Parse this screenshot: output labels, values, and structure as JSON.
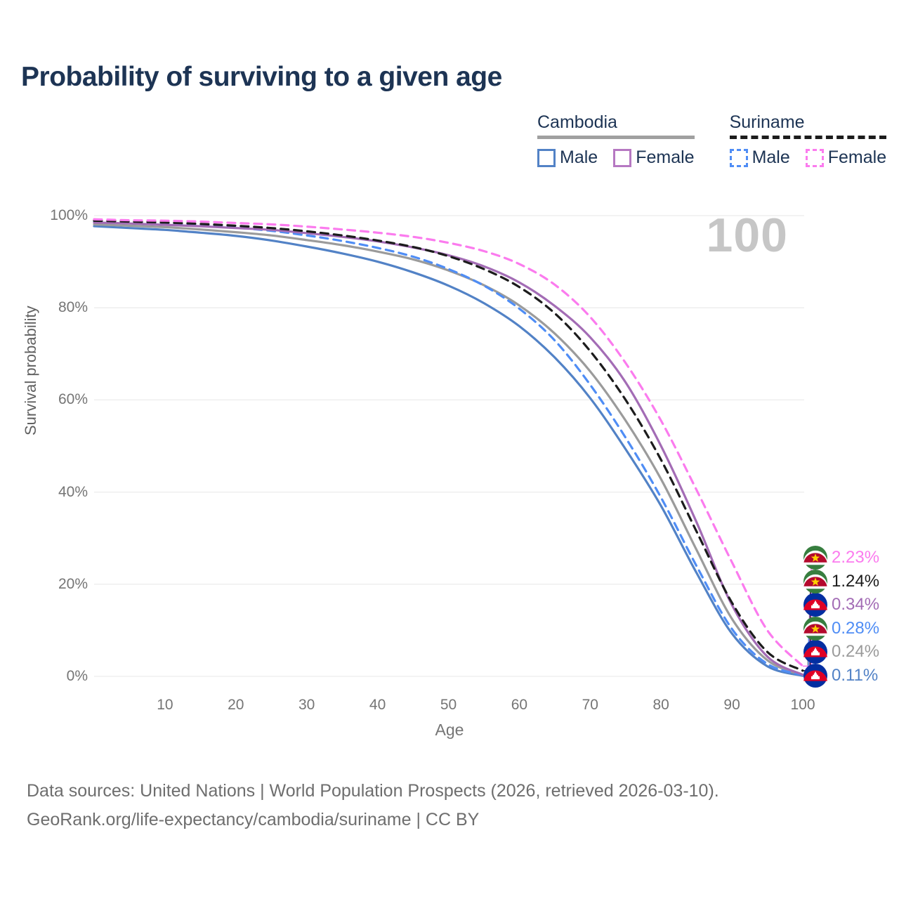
{
  "header": {
    "title": "Probability of surviving to a given age"
  },
  "legend": {
    "groups": [
      {
        "id": "cambodia",
        "label": "Cambodia",
        "underline_style": "solid",
        "underline_color": "#a0a0a0",
        "items": [
          {
            "label": "Male",
            "color": "#5282c6",
            "dashed": false
          },
          {
            "label": "Female",
            "color": "#b678c2",
            "dashed": false
          }
        ]
      },
      {
        "id": "suriname",
        "label": "Suriname",
        "underline_style": "dashed",
        "underline_color": "#1c1c1c",
        "items": [
          {
            "label": "Male",
            "color": "#4f8df5",
            "dashed": true
          },
          {
            "label": "Female",
            "color": "#fb7bee",
            "dashed": true
          }
        ]
      }
    ]
  },
  "chart_data": {
    "type": "line",
    "title": "Probability of surviving to a given age",
    "xlabel": "Age",
    "ylabel": "Survival probability",
    "xlim": [
      0,
      100
    ],
    "ylim": [
      0,
      100
    ],
    "grid": "horizontal",
    "legend_position": "top-right",
    "age_counter": "100",
    "x_ticks": [
      10,
      20,
      30,
      40,
      50,
      60,
      70,
      80,
      90,
      100
    ],
    "y_ticks": [
      {
        "value": 0,
        "label": "0%"
      },
      {
        "value": 20,
        "label": "20%"
      },
      {
        "value": 40,
        "label": "40%"
      },
      {
        "value": 60,
        "label": "60%"
      },
      {
        "value": 80,
        "label": "80%"
      },
      {
        "value": 100,
        "label": "100%"
      }
    ],
    "x": [
      0,
      5,
      10,
      15,
      20,
      25,
      30,
      35,
      40,
      45,
      50,
      55,
      60,
      65,
      70,
      75,
      80,
      85,
      90,
      95,
      100
    ],
    "series": [
      {
        "id": "suriname-female",
        "name": "Suriname Female",
        "country": "Suriname",
        "sex": "Female",
        "color": "#fb7bee",
        "dashed": true,
        "flag": "suriname",
        "end_label": "2.23%",
        "values": [
          99.2,
          99.0,
          98.9,
          98.7,
          98.4,
          98.1,
          97.6,
          97.0,
          96.3,
          95.4,
          94.1,
          92.3,
          89.5,
          85.0,
          78.0,
          68.0,
          55.5,
          40.5,
          24.8,
          10.0,
          2.23
        ]
      },
      {
        "id": "suriname-both",
        "name": "Suriname",
        "country": "Suriname",
        "sex": "Both",
        "color": "#1c1c1c",
        "dashed": true,
        "flag": "suriname",
        "end_label": "1.24%",
        "values": [
          98.9,
          98.7,
          98.5,
          98.2,
          97.8,
          97.3,
          96.6,
          95.7,
          94.6,
          93.2,
          91.2,
          88.4,
          84.5,
          78.8,
          70.6,
          60.0,
          47.0,
          31.5,
          16.0,
          5.3,
          1.24
        ]
      },
      {
        "id": "cambodia-female",
        "name": "Cambodia Female",
        "country": "Cambodia",
        "sex": "Female",
        "color": "#a36cb5",
        "dashed": false,
        "flag": "cambodia",
        "end_label": "0.34%",
        "values": [
          98.5,
          98.3,
          98.0,
          97.7,
          97.3,
          96.9,
          96.2,
          95.4,
          94.4,
          93.1,
          91.4,
          89.0,
          85.5,
          80.4,
          73.6,
          63.8,
          50.0,
          33.5,
          15.5,
          4.3,
          0.34
        ]
      },
      {
        "id": "suriname-male",
        "name": "Suriname Male",
        "country": "Suriname",
        "sex": "Male",
        "color": "#4f8df5",
        "dashed": true,
        "flag": "suriname",
        "end_label": "0.28%",
        "values": [
          98.7,
          98.5,
          98.2,
          97.9,
          97.4,
          96.7,
          95.7,
          94.5,
          93.0,
          91.1,
          88.4,
          84.8,
          79.8,
          72.9,
          63.3,
          51.8,
          38.8,
          24.0,
          10.3,
          2.7,
          0.28
        ]
      },
      {
        "id": "cambodia-both",
        "name": "Cambodia",
        "country": "Cambodia",
        "sex": "Both",
        "color": "#9b9b9b",
        "dashed": false,
        "flag": "cambodia",
        "end_label": "0.24%",
        "values": [
          98.1,
          97.8,
          97.5,
          97.0,
          96.4,
          95.7,
          94.7,
          93.6,
          92.2,
          90.5,
          88.1,
          84.9,
          80.5,
          74.4,
          66.2,
          55.5,
          42.8,
          27.5,
          12.5,
          3.5,
          0.24
        ]
      },
      {
        "id": "cambodia-male",
        "name": "Cambodia Male",
        "country": "Cambodia",
        "sex": "Male",
        "color": "#5282c6",
        "dashed": false,
        "flag": "cambodia",
        "end_label": "0.11%",
        "values": [
          97.7,
          97.3,
          96.9,
          96.3,
          95.6,
          94.6,
          93.3,
          91.8,
          90.0,
          87.7,
          84.8,
          81.0,
          76.0,
          69.2,
          60.4,
          49.3,
          37.0,
          22.5,
          9.3,
          2.2,
          0.11
        ]
      }
    ]
  },
  "footer": {
    "line1": "Data sources: United Nations | World Population Prospects (2026, retrieved 2026-03-10).",
    "line2": "GeoRank.org/life-expectancy/cambodia/suriname | CC BY"
  }
}
